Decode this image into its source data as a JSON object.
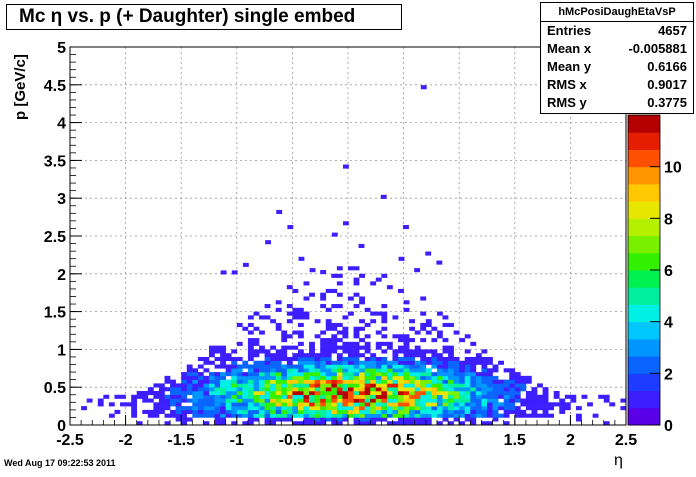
{
  "title": "Mc η vs. p (+ Daughter) single embed",
  "stats": {
    "name": "hMcPosiDaughEtaVsP",
    "rows": [
      {
        "label": "Entries",
        "value": "4657"
      },
      {
        "label": "Mean x",
        "value": "-0.005881"
      },
      {
        "label": "Mean y",
        "value": "0.6166"
      },
      {
        "label": "RMS x",
        "value": "0.9017"
      },
      {
        "label": "RMS y",
        "value": "0.3775"
      }
    ]
  },
  "datestamp": "Wed Aug 17 09:22:53 2011",
  "chart_data": {
    "type": "heatmap",
    "xlabel": "η",
    "ylabel": "p [GeV/c]",
    "xlim": [
      -2.5,
      2.5
    ],
    "ylim": [
      0,
      5
    ],
    "xticks": [
      "-2.5",
      "-2",
      "-1.5",
      "-1",
      "-0.5",
      "0",
      "0.5",
      "1",
      "1.5",
      "2",
      "2.5"
    ],
    "yticks": [
      "0",
      "0.5",
      "1",
      "1.5",
      "2",
      "2.5",
      "3",
      "3.5",
      "4",
      "4.5",
      "5"
    ],
    "zlim": [
      0,
      12
    ],
    "zticks": [
      "0",
      "2",
      "4",
      "6",
      "8",
      "10"
    ],
    "grid": true,
    "colormap": [
      "#5a00e6",
      "#3c1eff",
      "#1e3cff",
      "#0a64ff",
      "#0096ff",
      "#00c8ff",
      "#00f0e6",
      "#00f0a0",
      "#00f050",
      "#32f000",
      "#78f000",
      "#b4f000",
      "#e6e600",
      "#ffc800",
      "#ff9600",
      "#ff5000",
      "#e61e00",
      "#b40000"
    ],
    "outliers": [
      {
        "x": 0.68,
        "y": 4.47,
        "z": 1
      },
      {
        "x": -0.02,
        "y": 3.42,
        "z": 1
      },
      {
        "x": 0.32,
        "y": 3.02,
        "z": 1
      },
      {
        "x": -0.62,
        "y": 2.82,
        "z": 1
      },
      {
        "x": -0.02,
        "y": 2.67,
        "z": 1
      },
      {
        "x": -0.52,
        "y": 2.62,
        "z": 1
      },
      {
        "x": 0.52,
        "y": 2.62,
        "z": 1
      },
      {
        "x": -0.72,
        "y": 2.42,
        "z": 1
      },
      {
        "x": -0.12,
        "y": 2.52,
        "z": 1
      },
      {
        "x": -0.92,
        "y": 2.12,
        "z": 1
      },
      {
        "x": -0.42,
        "y": 2.2,
        "z": 1
      },
      {
        "x": 0.48,
        "y": 2.2,
        "z": 1
      },
      {
        "x": 0.82,
        "y": 2.15,
        "z": 1
      },
      {
        "x": -1.02,
        "y": 2.02,
        "z": 1
      },
      {
        "x": 0.12,
        "y": 2.37,
        "z": 1
      },
      {
        "x": 0.72,
        "y": 2.27,
        "z": 1
      },
      {
        "x": -1.12,
        "y": 2.02,
        "z": 1
      },
      {
        "x": 0.62,
        "y": 2.05,
        "z": 1
      },
      {
        "x": -0.32,
        "y": 2.05,
        "z": 1
      }
    ]
  }
}
